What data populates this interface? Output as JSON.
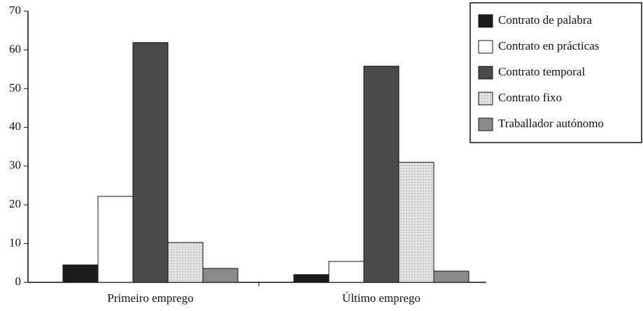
{
  "chart_data": {
    "type": "bar",
    "categories": [
      "Primeiro emprego",
      "Último emprego"
    ],
    "series": [
      {
        "name": "Contrato de palabra",
        "color": "#1c1c1c",
        "values": [
          4.5,
          2
        ]
      },
      {
        "name": "Contrato en prácticas",
        "color": "#ffffff",
        "values": [
          22.2,
          5.4
        ]
      },
      {
        "name": "Contrato temporal",
        "color": "#4a4a4a",
        "values": [
          61.9,
          55.8
        ]
      },
      {
        "name": "Contrato fixo",
        "color": "#dcdcdc",
        "values": [
          10.3,
          31
        ]
      },
      {
        "name": "Traballador autónomo",
        "color": "#8a8a8a",
        "values": [
          3.6,
          2.9
        ]
      }
    ],
    "ylim": [
      0,
      70
    ],
    "yticks": [
      0,
      10,
      20,
      30,
      40,
      50,
      60,
      70
    ],
    "legend": "upper right"
  }
}
